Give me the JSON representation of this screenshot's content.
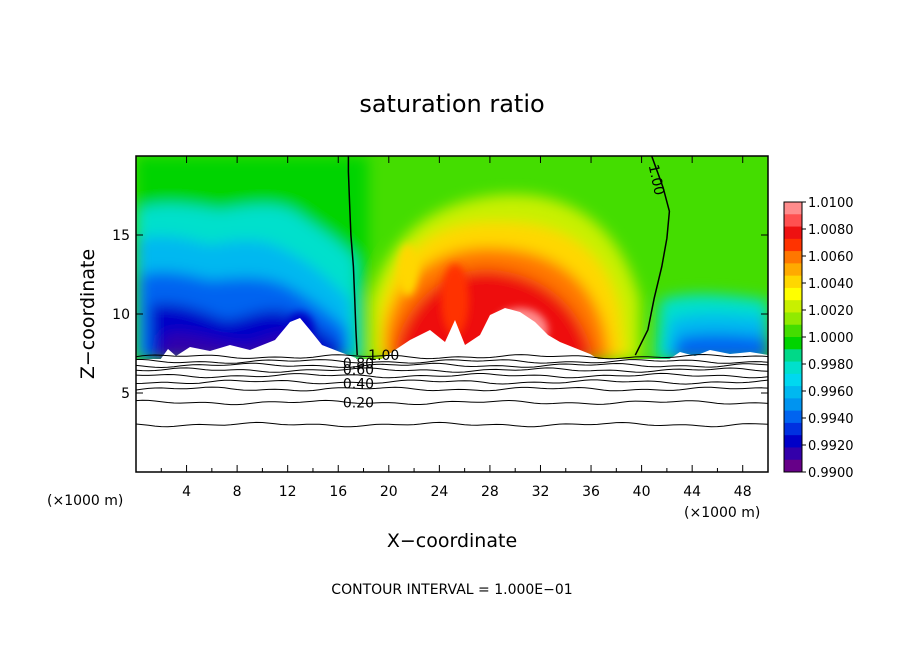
{
  "chart_data": {
    "type": "heatmap",
    "title": "saturation ratio",
    "xlabel": "X−coordinate",
    "ylabel": "Z−coordinate",
    "x_unit": "(×1000 m)",
    "y_unit": "(×1000 m)",
    "xlim": [
      0,
      50
    ],
    "ylim": [
      0,
      20
    ],
    "x_ticks": [
      4,
      8,
      12,
      16,
      20,
      24,
      28,
      32,
      36,
      40,
      44,
      48
    ],
    "y_ticks": [
      5,
      10,
      15
    ],
    "grid": false,
    "colorbar": {
      "levels": [
        "1.0100",
        "1.0080",
        "1.0060",
        "1.0040",
        "1.0020",
        "1.0000",
        "0.9980",
        "0.9960",
        "0.9940",
        "0.9920",
        "0.9900"
      ],
      "colors": [
        "#ff8c8c",
        "#ff5050",
        "#ee1111",
        "#ff3300",
        "#ff7700",
        "#ffaa00",
        "#ffd700",
        "#ffff00",
        "#c8f000",
        "#90ea00",
        "#44dd00",
        "#00d400",
        "#00d988",
        "#00e0cc",
        "#00d8f0",
        "#00b8f0",
        "#0094f0",
        "#0064f0",
        "#0030e0",
        "#0000c8",
        "#3300aa",
        "#660088"
      ]
    },
    "contour_labels": [
      {
        "text": "1.00",
        "x": 19.6,
        "z": 7.4
      },
      {
        "text": "0.80",
        "x": 17.6,
        "z": 6.9
      },
      {
        "text": "0.60",
        "x": 17.6,
        "z": 6.5
      },
      {
        "text": "0.40",
        "x": 17.6,
        "z": 5.6
      },
      {
        "text": "0.20",
        "x": 17.6,
        "z": 4.4
      },
      {
        "text": "1.00",
        "x": 41.2,
        "z": 18.5
      }
    ],
    "contour_lines_z": [
      7.3,
      7.0,
      6.75,
      6.45,
      6.1,
      5.7,
      5.25,
      4.4,
      3.0
    ],
    "supersat_line": [
      [
        17.5,
        7.4
      ],
      [
        17.4,
        9
      ],
      [
        17.3,
        11
      ],
      [
        17.2,
        13
      ],
      [
        17.0,
        15
      ],
      [
        16.9,
        17
      ],
      [
        16.8,
        19
      ],
      [
        16.8,
        20
      ]
    ],
    "supersat_line_right": [
      [
        39.5,
        7.4
      ],
      [
        40.5,
        9
      ],
      [
        41.0,
        11
      ],
      [
        41.6,
        13
      ],
      [
        42.0,
        14.8
      ],
      [
        42.2,
        16.5
      ],
      [
        41.7,
        18
      ],
      [
        40.8,
        20
      ]
    ],
    "footer": "CONTOUR INTERVAL = 1.000E−01"
  }
}
